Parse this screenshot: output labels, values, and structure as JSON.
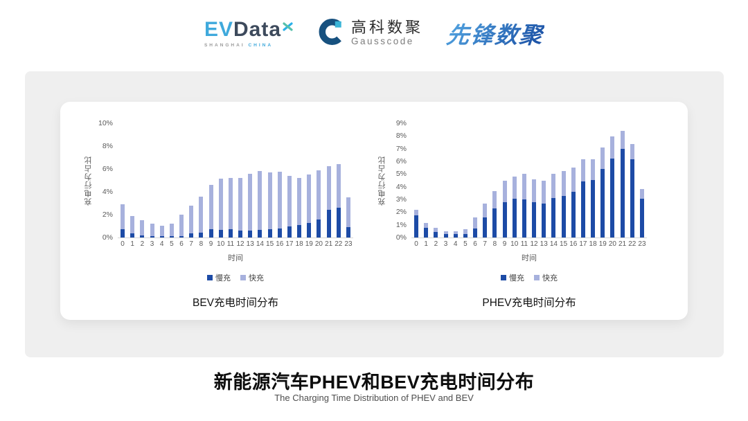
{
  "header": {
    "evdata": {
      "part1": "EV",
      "part2": "Data",
      "sub1": "SHANGHAI",
      "sub2": "CHINA"
    },
    "gausscode": {
      "name_cn": "高科数聚",
      "name_en": "Gausscode"
    },
    "pioneer": {
      "name": "先锋数聚"
    }
  },
  "footer": {
    "title": "新能源汽车PHEV和BEV充电时间分布",
    "subtitle": "The Charging Time Distribution of PHEV and BEV"
  },
  "colors": {
    "slow_charge": "#1d4ba6",
    "fast_charge": "#a7b1dd",
    "panel": "#efefef"
  },
  "chart_data": [
    {
      "type": "bar",
      "stacked": true,
      "title": "BEV充电时间分布",
      "xlabel": "时间",
      "ylabel": "充电行为占比",
      "ylim": [
        0,
        10
      ],
      "ytick_step": 2,
      "ytick_suffix": "%",
      "grid": false,
      "legend_position": "bottom",
      "categories": [
        "0",
        "1",
        "2",
        "3",
        "4",
        "5",
        "6",
        "7",
        "8",
        "9",
        "10",
        "11",
        "12",
        "13",
        "14",
        "15",
        "16",
        "17",
        "18",
        "19",
        "20",
        "21",
        "22",
        "23"
      ],
      "series": [
        {
          "name": "慢充",
          "color": "#1d4ba6",
          "values": [
            0.75,
            0.35,
            0.2,
            0.1,
            0.1,
            0.1,
            0.15,
            0.35,
            0.45,
            0.7,
            0.65,
            0.7,
            0.6,
            0.6,
            0.65,
            0.7,
            0.8,
            0.95,
            1.1,
            1.3,
            1.6,
            2.4,
            2.6,
            0.9
          ]
        },
        {
          "name": "快充",
          "color": "#a7b1dd",
          "values": [
            2.15,
            1.55,
            1.3,
            1.1,
            0.95,
            1.1,
            1.85,
            2.45,
            3.1,
            3.9,
            4.5,
            4.5,
            4.6,
            5.0,
            5.15,
            5.0,
            4.95,
            4.45,
            4.1,
            4.2,
            4.3,
            3.85,
            3.85,
            2.6
          ]
        }
      ]
    },
    {
      "type": "bar",
      "stacked": true,
      "title": "PHEV充电时间分布",
      "xlabel": "时间",
      "ylabel": "充电行为占比",
      "ylim": [
        0,
        9
      ],
      "ytick_step": 1,
      "ytick_suffix": "%",
      "grid": false,
      "legend_position": "bottom",
      "categories": [
        "0",
        "1",
        "2",
        "3",
        "4",
        "5",
        "6",
        "7",
        "8",
        "9",
        "10",
        "11",
        "12",
        "13",
        "14",
        "15",
        "16",
        "17",
        "18",
        "19",
        "20",
        "21",
        "22",
        "23"
      ],
      "series": [
        {
          "name": "慢充",
          "color": "#1d4ba6",
          "values": [
            1.75,
            0.75,
            0.45,
            0.25,
            0.25,
            0.3,
            0.7,
            1.6,
            2.3,
            2.8,
            3.05,
            3.0,
            2.8,
            2.65,
            3.1,
            3.3,
            3.6,
            4.4,
            4.55,
            5.4,
            6.2,
            7.0,
            6.15,
            3.05
          ]
        },
        {
          "name": "快充",
          "color": "#a7b1dd",
          "values": [
            0.45,
            0.4,
            0.3,
            0.25,
            0.25,
            0.35,
            0.9,
            1.1,
            1.35,
            1.7,
            1.75,
            2.0,
            1.8,
            1.8,
            1.9,
            1.95,
            1.9,
            1.75,
            1.6,
            1.7,
            1.75,
            1.4,
            1.2,
            0.75
          ]
        }
      ]
    }
  ]
}
